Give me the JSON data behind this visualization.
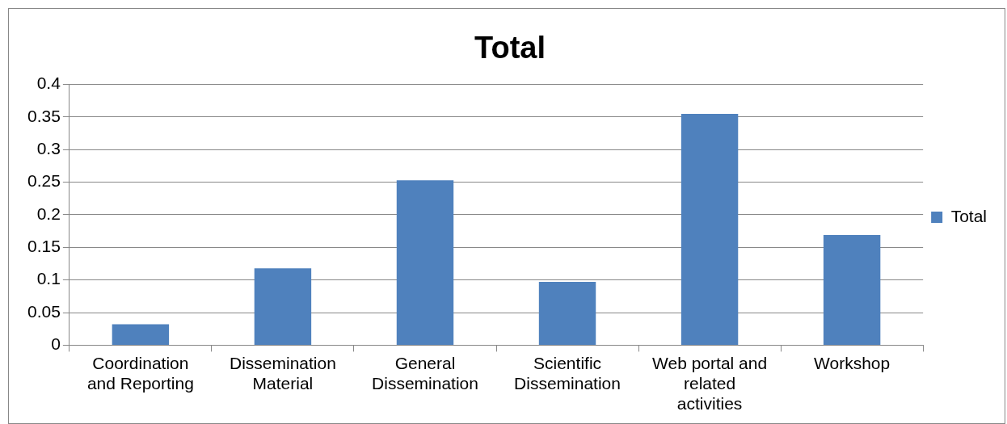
{
  "chart_data": {
    "type": "bar",
    "title": "Total",
    "categories": [
      "Coordination and Reporting",
      "Dissemination Material",
      "General Dissemination",
      "Scientific Dissemination",
      "Web portal and related activities",
      "Workshop"
    ],
    "series": [
      {
        "name": "Total",
        "color": "#4f81bd",
        "values": [
          0.032,
          0.118,
          0.253,
          0.097,
          0.355,
          0.169
        ]
      }
    ],
    "ylim": [
      0,
      0.4
    ],
    "yticks": [
      0,
      0.05,
      0.1,
      0.15,
      0.2,
      0.25,
      0.3,
      0.35,
      0.4
    ],
    "grid": "y",
    "legend": "right"
  }
}
